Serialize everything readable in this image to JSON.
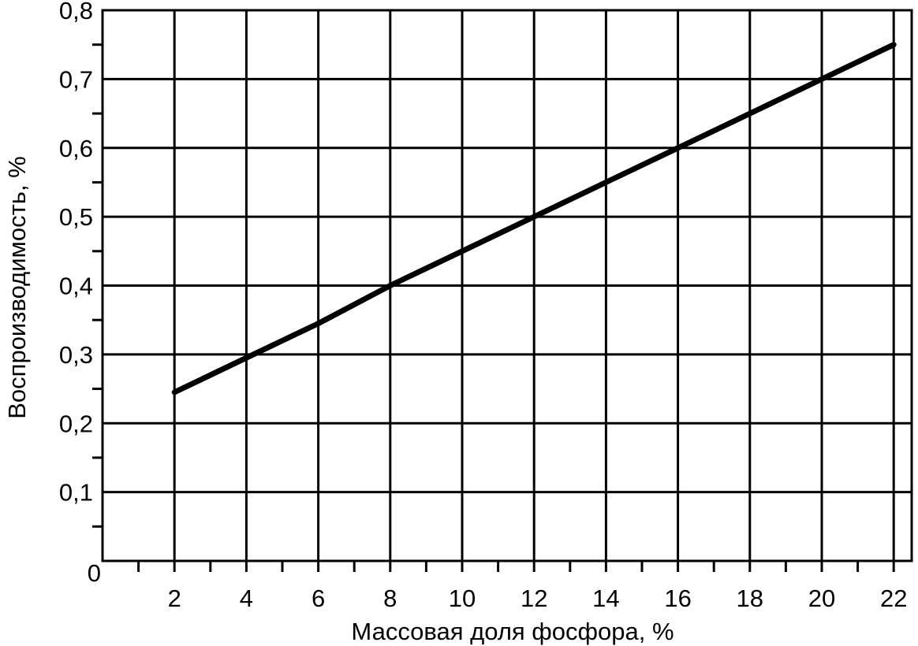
{
  "chart_data": {
    "type": "line",
    "title": "",
    "xlabel": "Массовая доля фосфора, %",
    "ylabel": "Воспроизводимость, %",
    "xlim": [
      0,
      22.5
    ],
    "ylim": [
      0,
      0.8
    ],
    "grid": true,
    "x_ticks": [
      2,
      4,
      6,
      8,
      10,
      12,
      14,
      16,
      18,
      20,
      22
    ],
    "x_tick_labels": [
      "2",
      "4",
      "6",
      "8",
      "10",
      "12",
      "14",
      "16",
      "18",
      "20",
      "22"
    ],
    "x_minor_ticks": [
      1,
      3,
      5,
      7,
      9,
      11,
      13,
      15,
      17,
      19,
      21
    ],
    "y_ticks": [
      0,
      0.1,
      0.2,
      0.3,
      0.4,
      0.5,
      0.6,
      0.7,
      0.8
    ],
    "y_tick_labels": [
      "0",
      "0,1",
      "0,2",
      "0,3",
      "0,4",
      "0,5",
      "0,6",
      "0,7",
      "0,8"
    ],
    "y_minor_ticks": [
      0.05,
      0.15,
      0.25,
      0.35,
      0.45,
      0.55,
      0.65,
      0.75
    ],
    "series": [
      {
        "x": [
          2,
          4,
          6,
          8,
          10,
          12,
          14,
          16,
          18,
          20,
          22
        ],
        "y": [
          0.245,
          0.295,
          0.345,
          0.4,
          0.45,
          0.5,
          0.55,
          0.6,
          0.65,
          0.7,
          0.75
        ],
        "color": "#000000"
      }
    ]
  }
}
